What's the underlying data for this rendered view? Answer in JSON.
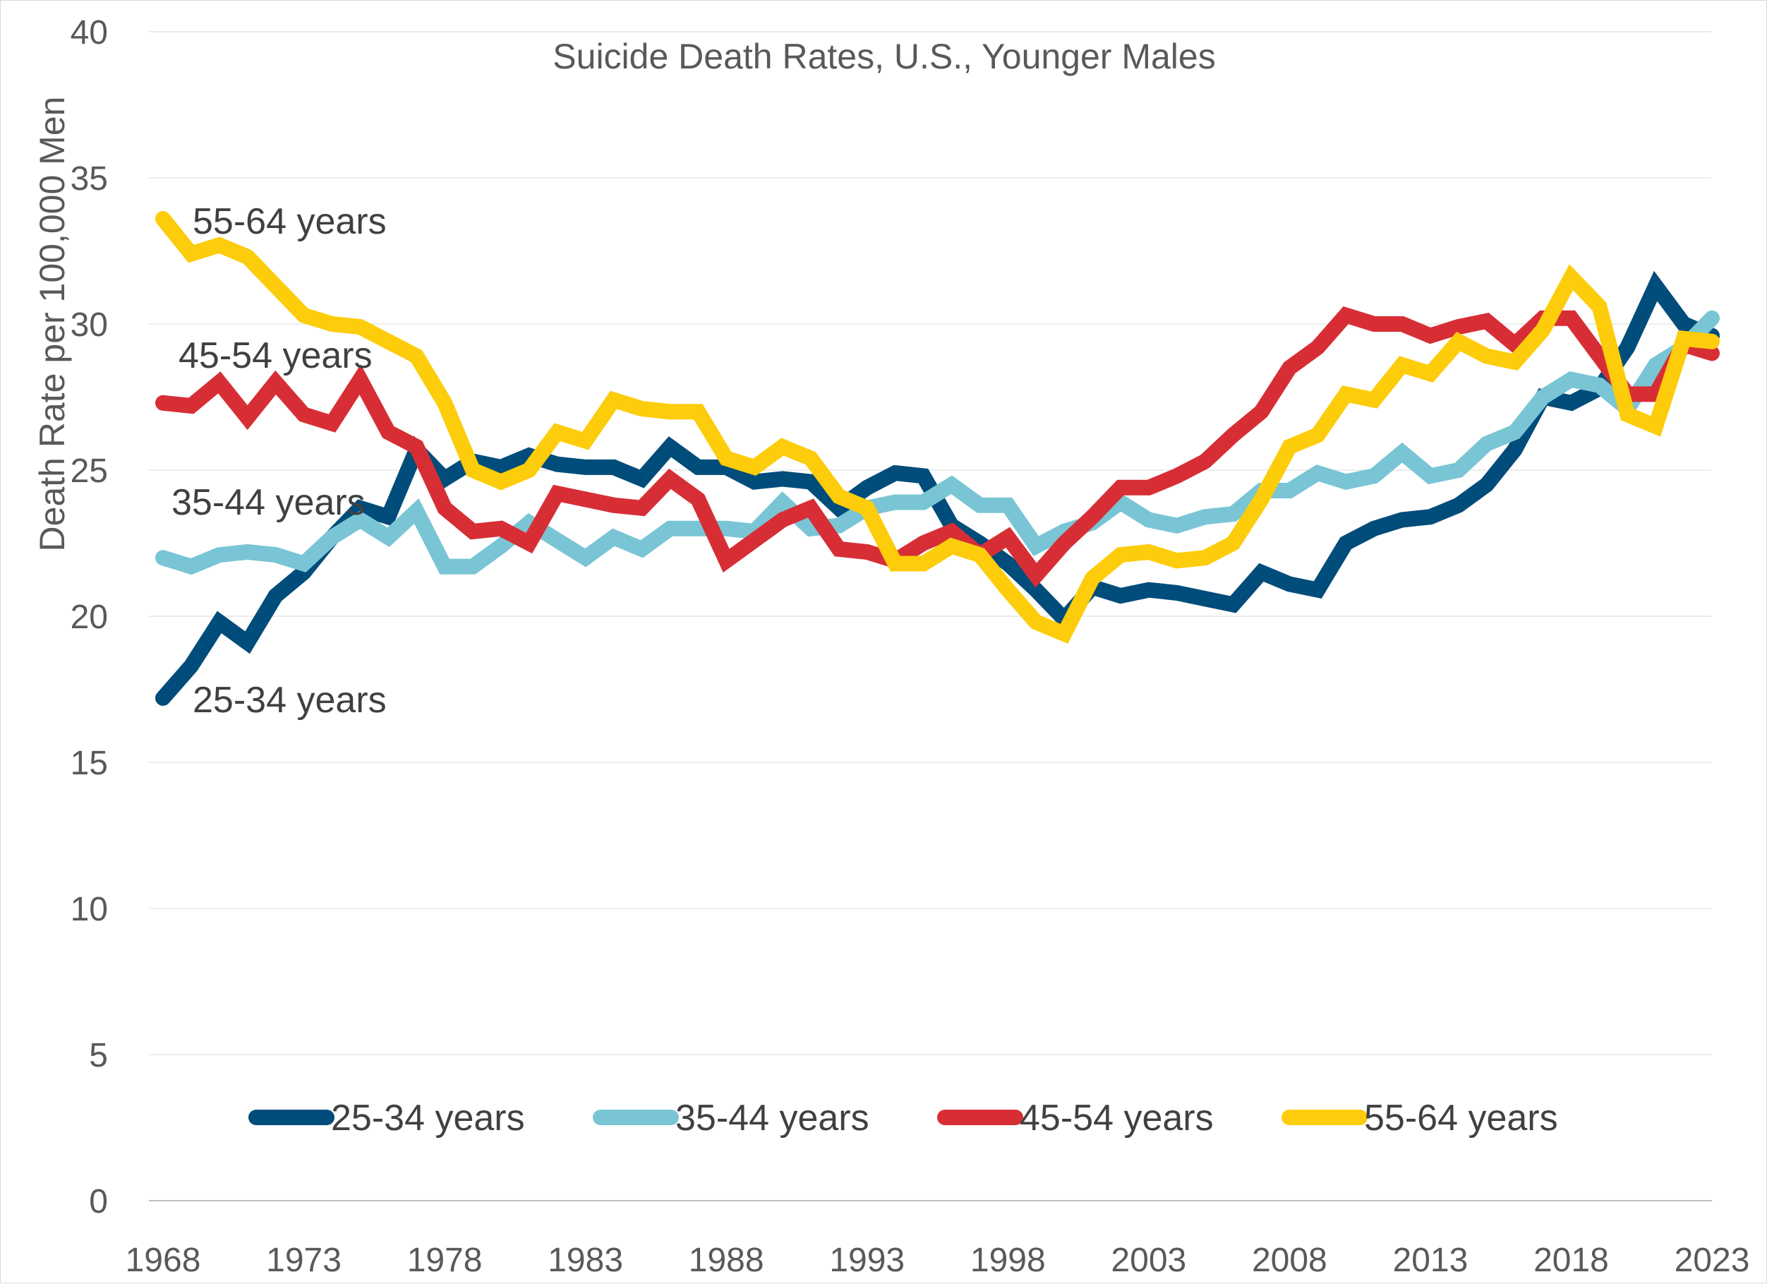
{
  "chart_data": {
    "type": "line",
    "title": "Suicide Death Rates, U.S., Younger Males",
    "xlabel": "",
    "ylabel": "Death Rate per 100,000 Men",
    "ylim": [
      0,
      40
    ],
    "xlim": [
      1968,
      2023
    ],
    "yticks": [
      "0",
      "5",
      "10",
      "15",
      "20",
      "25",
      "30",
      "35",
      "40"
    ],
    "xticks": [
      "1968",
      "1973",
      "1978",
      "1983",
      "1988",
      "1993",
      "1998",
      "2003",
      "2008",
      "2013",
      "2018",
      "2023"
    ],
    "grid": "horizontal",
    "legend": "bottom",
    "x": [
      1968,
      1969,
      1970,
      1971,
      1972,
      1973,
      1974,
      1975,
      1976,
      1977,
      1978,
      1979,
      1980,
      1981,
      1982,
      1983,
      1984,
      1985,
      1986,
      1987,
      1988,
      1989,
      1990,
      1991,
      1992,
      1993,
      1994,
      1995,
      1996,
      1997,
      1998,
      1999,
      2000,
      2001,
      2002,
      2003,
      2004,
      2005,
      2006,
      2007,
      2008,
      2009,
      2010,
      2011,
      2012,
      2013,
      2014,
      2015,
      2016,
      2017,
      2018,
      2019,
      2020,
      2021,
      2022,
      2023
    ],
    "series": [
      {
        "name": "25-34 years",
        "color": "#004c7a",
        "label": "25-34 years",
        "values": [
          17.2,
          18.3,
          19.8,
          19.1,
          20.7,
          21.5,
          22.7,
          23.7,
          23.4,
          25.7,
          24.7,
          25.3,
          25.1,
          25.5,
          25.2,
          25.1,
          25.1,
          24.7,
          25.8,
          25.1,
          25.1,
          24.6,
          24.7,
          24.6,
          23.7,
          24.4,
          24.9,
          24.8,
          23.1,
          22.5,
          21.8,
          20.9,
          19.9,
          21.0,
          20.7,
          20.9,
          20.8,
          20.6,
          20.4,
          21.5,
          21.1,
          20.9,
          22.5,
          23.0,
          23.3,
          23.4,
          23.8,
          24.5,
          25.7,
          27.5,
          27.3,
          27.8,
          29.2,
          31.3,
          30.0,
          29.6
        ]
      },
      {
        "name": "35-44 years",
        "color": "#79c5d5",
        "label": "35-44 years",
        "values": [
          22.0,
          21.7,
          22.1,
          22.2,
          22.1,
          21.8,
          22.7,
          23.3,
          22.7,
          23.6,
          21.7,
          21.7,
          22.4,
          23.2,
          22.6,
          22.0,
          22.7,
          22.3,
          23.0,
          23.0,
          23.0,
          22.9,
          23.9,
          23.0,
          23.1,
          23.7,
          23.9,
          23.9,
          24.5,
          23.8,
          23.8,
          22.4,
          22.9,
          23.2,
          23.9,
          23.3,
          23.1,
          23.4,
          23.5,
          24.3,
          24.3,
          24.9,
          24.6,
          24.8,
          25.6,
          24.8,
          25.0,
          25.9,
          26.3,
          27.5,
          28.1,
          27.9,
          27.1,
          28.6,
          29.2,
          30.2
        ]
      },
      {
        "name": "45-54 years",
        "color": "#d72e36",
        "label": "45-54 years",
        "values": [
          27.3,
          27.2,
          28.0,
          26.8,
          28.0,
          26.9,
          26.6,
          28.1,
          26.3,
          25.8,
          23.7,
          22.9,
          23.0,
          22.5,
          24.2,
          24.0,
          23.8,
          23.7,
          24.7,
          24.0,
          21.9,
          22.6,
          23.3,
          23.7,
          22.3,
          22.2,
          21.9,
          22.5,
          22.9,
          22.1,
          22.7,
          21.4,
          22.5,
          23.4,
          24.4,
          24.4,
          24.8,
          25.3,
          26.2,
          27.0,
          28.5,
          29.2,
          30.3,
          30.0,
          30.0,
          29.6,
          29.9,
          30.1,
          29.3,
          30.2,
          30.2,
          28.9,
          27.6,
          27.6,
          29.3,
          29.0
        ]
      },
      {
        "name": "55-64 years",
        "color": "#fdcc0a",
        "label": "55-64 years",
        "values": [
          33.6,
          32.4,
          32.7,
          32.3,
          31.3,
          30.3,
          30.0,
          29.9,
          29.4,
          28.9,
          27.3,
          25.0,
          24.6,
          25.0,
          26.3,
          26.0,
          27.4,
          27.1,
          27.0,
          27.0,
          25.4,
          25.1,
          25.8,
          25.4,
          24.1,
          23.7,
          21.8,
          21.8,
          22.4,
          22.1,
          20.9,
          19.8,
          19.4,
          21.3,
          22.1,
          22.2,
          21.9,
          22.0,
          22.5,
          24.0,
          25.8,
          26.2,
          27.6,
          27.4,
          28.6,
          28.3,
          29.4,
          28.9,
          28.7,
          29.8,
          31.6,
          30.6,
          26.9,
          26.5,
          29.5,
          29.4
        ]
      }
    ],
    "annotations": [
      "55-64 years",
      "45-54 years",
      "35-44 years",
      "25-34 years"
    ]
  }
}
